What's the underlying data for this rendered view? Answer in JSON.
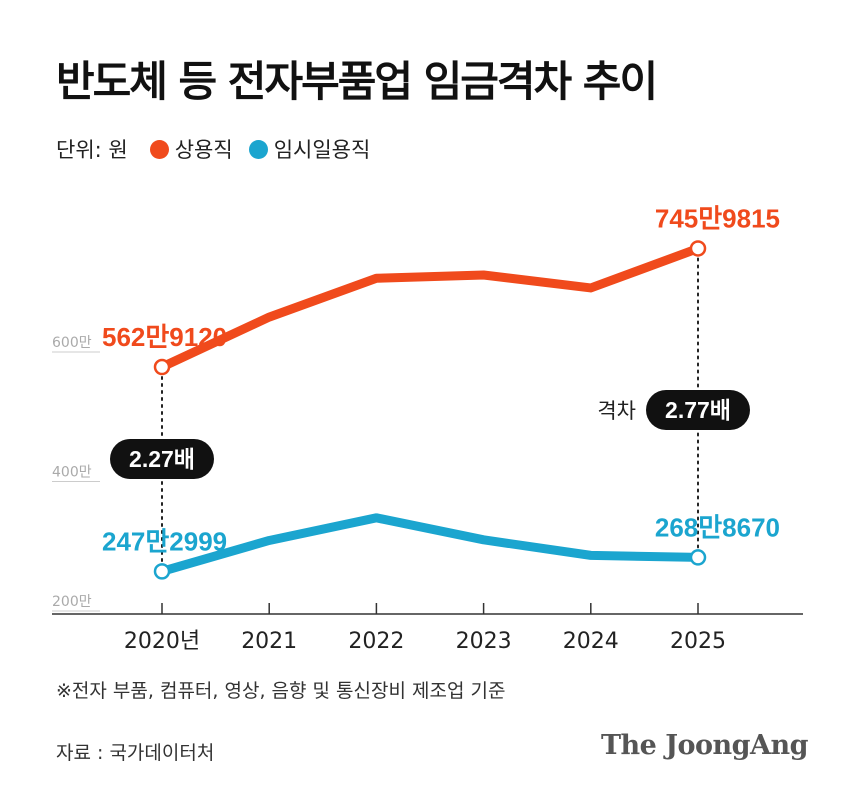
{
  "title": "반도체 등 전자부품업 임금격차 추이",
  "legend": {
    "unit": "단위: 원",
    "items": [
      {
        "label": "상용직",
        "color": "#f04a1c"
      },
      {
        "label": "임시일용직",
        "color": "#1ba5cf"
      }
    ]
  },
  "chart_data": {
    "type": "line",
    "categories": [
      "2020년",
      "2021",
      "2022",
      "2023",
      "2024",
      "2025"
    ],
    "series": [
      {
        "name": "상용직",
        "color": "#f04a1c",
        "values": [
          5629120,
          6400000,
          7000000,
          7050000,
          6850000,
          7459815
        ]
      },
      {
        "name": "임시일용직",
        "color": "#1ba5cf",
        "values": [
          2472999,
          2950000,
          3300000,
          2960000,
          2720000,
          2688670
        ]
      }
    ],
    "y_ticks": [
      {
        "value": 2000000,
        "label": "200만"
      },
      {
        "value": 4000000,
        "label": "400만"
      },
      {
        "value": 6000000,
        "label": "600만"
      }
    ],
    "ylim": [
      2000000,
      7700000
    ],
    "point_labels": [
      {
        "series": 0,
        "index": 0,
        "text": "562만9120"
      },
      {
        "series": 0,
        "index": 5,
        "text": "745만9815"
      },
      {
        "series": 1,
        "index": 0,
        "text": "247만2999"
      },
      {
        "series": 1,
        "index": 5,
        "text": "268만8670"
      }
    ],
    "gap_labels": [
      {
        "index": 0,
        "prefix": "",
        "value": "2.27배"
      },
      {
        "index": 5,
        "prefix": "격차",
        "value": "2.77배"
      }
    ]
  },
  "footnote": "※전자 부품, 컴퓨터, 영상, 음향 및 통신장비 제조업 기준",
  "source": "자료 : 국가데이터처",
  "brand": "The JoongAng"
}
